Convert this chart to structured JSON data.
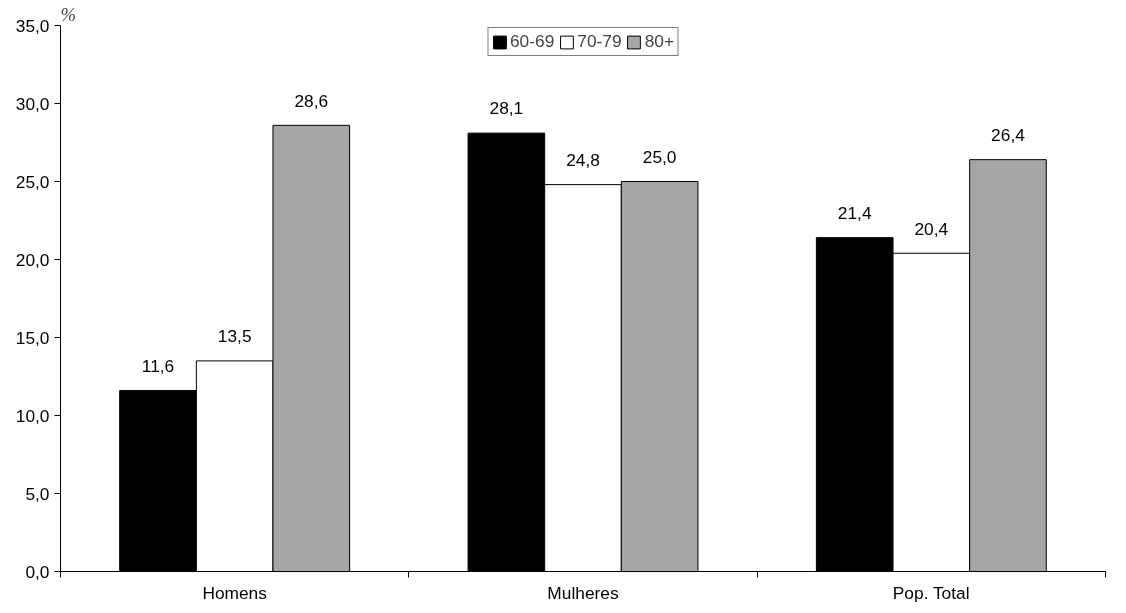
{
  "chart_data": {
    "type": "bar",
    "ylabel": "%",
    "categories": [
      "Homens",
      "Mulheres",
      "Pop. Total"
    ],
    "series": [
      {
        "name": "60-69",
        "color": "#000000",
        "values": [
          11.6,
          28.1,
          21.4
        ],
        "value_labels": [
          "11,6",
          "28,1",
          "21,4"
        ]
      },
      {
        "name": "70-79",
        "color": "#ffffff",
        "values": [
          13.5,
          24.8,
          20.4
        ],
        "value_labels": [
          "13,5",
          "24,8",
          "20,4"
        ]
      },
      {
        "name": "80+",
        "color": "#a6a6a6",
        "values": [
          28.6,
          25.0,
          26.4
        ],
        "value_labels": [
          "28,6",
          "25,0",
          "26,4"
        ]
      }
    ],
    "ylim": [
      0,
      35
    ],
    "yticks": [
      {
        "value": 0,
        "label": "0,0"
      },
      {
        "value": 5,
        "label": "5,0"
      },
      {
        "value": 10,
        "label": "10,0"
      },
      {
        "value": 15,
        "label": "15,0"
      },
      {
        "value": 20,
        "label": "20,0"
      },
      {
        "value": 25,
        "label": "25,0"
      },
      {
        "value": 30,
        "label": "30,0"
      },
      {
        "value": 35,
        "label": "35,0"
      }
    ],
    "grid": false,
    "legend": "top"
  }
}
